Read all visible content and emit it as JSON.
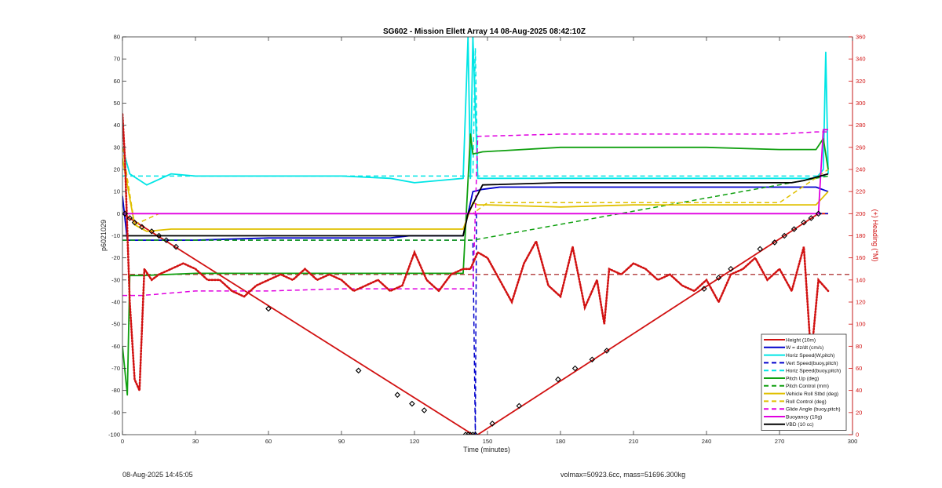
{
  "footer": {
    "left": "08-Aug-2025 14:45:05",
    "right": "volmax=50923.6cc, mass=51696.300kg"
  },
  "chart_data": {
    "type": "line",
    "title": "SG602 - Mission Ellett Array 14 08-Aug-2025 08:42:10Z",
    "xlabel": "Time (minutes)",
    "ylabel": "p6021029",
    "y2label": "(+) Heading (°M)",
    "xlim": [
      0,
      300
    ],
    "ylim": [
      -100,
      80
    ],
    "y2lim": [
      0,
      360
    ],
    "xticks": [
      0,
      30,
      60,
      90,
      120,
      150,
      180,
      210,
      240,
      270,
      300
    ],
    "yticks": [
      -100,
      -90,
      -80,
      -70,
      -60,
      -50,
      -40,
      -30,
      -20,
      -10,
      0,
      10,
      20,
      30,
      40,
      50,
      60,
      70,
      80
    ],
    "y2ticks": [
      0,
      20,
      40,
      60,
      80,
      100,
      120,
      140,
      160,
      180,
      200,
      220,
      240,
      260,
      280,
      300,
      320,
      340,
      360
    ],
    "grid": false,
    "legend_position": "bottom-right",
    "colors": {
      "axis_right": "#d11111",
      "height": "#d11111",
      "w": "#0000cc",
      "horiz": "#00e5e5",
      "pitch": "#10a010",
      "roll": "#e0c000",
      "buoyancy": "#e000e0",
      "vbd": "#000000"
    },
    "series": [
      {
        "name": "Height (10m)",
        "color": "#d11111",
        "style": "solid",
        "x": [
          0,
          144,
          146,
          286,
          290
        ],
        "y": [
          0,
          -100,
          -100,
          0,
          0
        ]
      },
      {
        "name": "W = dz/dt (cm/s)",
        "color": "#0000cc",
        "style": "solid",
        "x": [
          0,
          2,
          8,
          30,
          60,
          90,
          110,
          118,
          125,
          140,
          144,
          148,
          155,
          180,
          210,
          240,
          270,
          285,
          290
        ],
        "y": [
          8,
          -12,
          -12,
          -12,
          -11,
          -11,
          -11,
          -10,
          -10,
          -10,
          10,
          11,
          12,
          12,
          12,
          12,
          12,
          12,
          10
        ]
      },
      {
        "name": "Horiz Speed(W,pitch)",
        "color": "#00e5e5",
        "style": "solid",
        "x": [
          0,
          3,
          10,
          20,
          30,
          60,
          90,
          110,
          120,
          130,
          140,
          142,
          143,
          144,
          146,
          150,
          180,
          210,
          240,
          270,
          285,
          288,
          289,
          290
        ],
        "y": [
          30,
          18,
          13,
          18,
          17,
          17,
          17,
          16,
          14,
          15,
          16,
          80,
          16,
          80,
          16,
          16,
          16,
          16,
          16,
          16,
          16,
          20,
          73,
          18
        ]
      },
      {
        "name": "Vert Speed(buoy,pitch)",
        "color": "#0000cc",
        "style": "dashed",
        "x": [
          0,
          144,
          145,
          145.5,
          146,
          290
        ],
        "y": [
          -12,
          -12,
          -100,
          0,
          0,
          0
        ]
      },
      {
        "name": "Horiz Speed(buoy,pitch)",
        "color": "#00e5e5",
        "style": "dashed",
        "x": [
          0,
          144,
          145,
          146,
          290
        ],
        "y": [
          17,
          17,
          75,
          17,
          17
        ]
      },
      {
        "name": "Pitch Up (deg)",
        "color": "#10a010",
        "style": "solid",
        "x": [
          0,
          2,
          3,
          8,
          30,
          60,
          90,
          120,
          140,
          143,
          144,
          148,
          180,
          210,
          240,
          270,
          285,
          288,
          290
        ],
        "y": [
          -60,
          -82,
          -28,
          -28,
          -27,
          -27,
          -27,
          -27,
          -27,
          36,
          27,
          28,
          30,
          30,
          30,
          29,
          29,
          34,
          20
        ]
      },
      {
        "name": "Pitch Control (mm)",
        "color": "#10a010",
        "style": "dashed",
        "x": [
          0,
          144,
          290
        ],
        "y": [
          -12,
          -12,
          17
        ]
      },
      {
        "name": "Vehicle Roll Stbd (deg)",
        "color": "#e0c000",
        "style": "solid",
        "x": [
          0,
          5,
          10,
          20,
          60,
          90,
          120,
          140,
          144,
          146,
          150,
          180,
          210,
          240,
          270,
          285,
          290
        ],
        "y": [
          25,
          -5,
          -8,
          -7,
          -7,
          -7,
          -7,
          -7,
          5,
          4,
          4,
          3,
          4,
          4,
          4,
          4,
          10
        ]
      },
      {
        "name": "Roll Control (deg)",
        "color": "#e0c000",
        "style": "dashed",
        "x": [
          0,
          5,
          15,
          60,
          90,
          120,
          140,
          144,
          150,
          180,
          210,
          240,
          270,
          290
        ],
        "y": [
          30,
          -5,
          0,
          0,
          0,
          0,
          0,
          0,
          5,
          5,
          5,
          5,
          5,
          20
        ]
      },
      {
        "name": "Glide Angle (buoy,pitch)",
        "color": "#e000e0",
        "style": "dashed",
        "x": [
          0,
          8,
          30,
          60,
          90,
          120,
          140,
          144,
          146,
          180,
          210,
          240,
          270,
          285,
          290
        ],
        "y": [
          -37,
          -37,
          -35,
          -35,
          -34,
          -34,
          -34,
          -34,
          35,
          36,
          36,
          36,
          36,
          37,
          37
        ]
      },
      {
        "name": "Buoyancy (10g)",
        "color": "#e000e0",
        "style": "solid",
        "x": [
          0,
          144,
          286,
          288,
          290
        ],
        "y": [
          0,
          0,
          0,
          38,
          38
        ]
      },
      {
        "name": "VBD (10 cc)",
        "color": "#000000",
        "style": "solid",
        "x": [
          0,
          2,
          60,
          120,
          140,
          142,
          148,
          180,
          210,
          240,
          275,
          280,
          290
        ],
        "y": [
          -10,
          -10,
          -10,
          -10,
          -10,
          0,
          13,
          14,
          14,
          14,
          14,
          15,
          18
        ]
      }
    ],
    "heading": {
      "axis": "right",
      "color": "#d11111",
      "style": "dotted",
      "reference": 145,
      "x": [
        0,
        1,
        3,
        5,
        7,
        9,
        12,
        15,
        20,
        25,
        30,
        35,
        40,
        45,
        50,
        55,
        60,
        65,
        70,
        75,
        80,
        85,
        90,
        95,
        100,
        105,
        110,
        115,
        120,
        125,
        130,
        135,
        140,
        143,
        146,
        150,
        155,
        160,
        165,
        170,
        175,
        180,
        185,
        190,
        195,
        198,
        200,
        205,
        210,
        215,
        220,
        225,
        230,
        235,
        240,
        245,
        250,
        255,
        260,
        265,
        270,
        275,
        280,
        283,
        286,
        290
      ],
      "y": [
        290,
        250,
        120,
        50,
        40,
        150,
        140,
        145,
        150,
        155,
        150,
        140,
        140,
        130,
        125,
        135,
        140,
        145,
        140,
        150,
        140,
        145,
        140,
        130,
        135,
        140,
        130,
        135,
        165,
        140,
        130,
        145,
        150,
        150,
        165,
        160,
        140,
        120,
        155,
        175,
        135,
        125,
        170,
        115,
        140,
        100,
        150,
        145,
        155,
        150,
        140,
        145,
        135,
        130,
        140,
        120,
        145,
        150,
        160,
        140,
        150,
        130,
        170,
        70,
        140,
        130
      ]
    },
    "markers": {
      "x": [
        1,
        3,
        5,
        8,
        12,
        15,
        18,
        22,
        60,
        97,
        113,
        119,
        124,
        141,
        142,
        143,
        144,
        145,
        152,
        163,
        179,
        186,
        193,
        199,
        239,
        245,
        250,
        262,
        268,
        272,
        276,
        280,
        283,
        286
      ],
      "y": [
        0,
        -2,
        -4,
        -6,
        -8,
        -10,
        -12,
        -15,
        -43,
        -71,
        -82,
        -86,
        -89,
        -100,
        -100,
        -100,
        -100,
        -100,
        -95,
        -87,
        -75,
        -70,
        -66,
        -62,
        -34,
        -29,
        -25,
        -16,
        -13,
        -10,
        -7,
        -4,
        -2,
        0
      ]
    }
  },
  "legend": {
    "items": [
      "Height (10m)",
      "W = dz/dt (cm/s)",
      "Horiz Speed(W,pitch)",
      "Vert Speed(buoy,pitch)",
      "Horiz Speed(buoy,pitch)",
      "Pitch Up (deg)",
      "Pitch Control (mm)",
      "Vehicle Roll Stbd (deg)",
      "Roll Control (deg)",
      "Glide Angle (buoy,pitch)",
      "Buoyancy (10g)",
      "VBD (10 cc)"
    ]
  }
}
